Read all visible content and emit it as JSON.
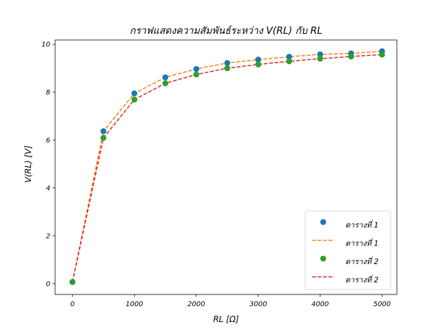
{
  "chart_data": {
    "type": "line",
    "title": "กราฟแสดงความสัมพันธ์ระหว่าง V(RL) กับ RL",
    "xlabel": "RL [Ω]",
    "ylabel": "V(RL) [V]",
    "xlim": [
      -280,
      5240
    ],
    "ylim": [
      -0.45,
      10.18
    ],
    "x_ticks": [
      0,
      1000,
      2000,
      3000,
      4000,
      5000
    ],
    "y_ticks": [
      0,
      2,
      4,
      6,
      8,
      10
    ],
    "grid": false,
    "legend_position": "lower-right",
    "x": [
      0,
      500,
      1000,
      1500,
      2000,
      2500,
      3000,
      3500,
      4000,
      4500,
      5000
    ],
    "series": [
      {
        "name": "ตารางที่ 1",
        "style": "markers",
        "color": "#1f77b4",
        "values": [
          0.07,
          6.37,
          7.95,
          8.62,
          8.97,
          9.22,
          9.36,
          9.48,
          9.58,
          9.62,
          9.71
        ]
      },
      {
        "name": "ตารางที่ 1",
        "style": "dashed",
        "color": "#ff7f0e",
        "values": [
          0.07,
          6.37,
          7.95,
          8.62,
          8.97,
          9.22,
          9.36,
          9.48,
          9.58,
          9.62,
          9.71
        ]
      },
      {
        "name": "ตารางที่ 2",
        "style": "markers",
        "color": "#2ca02c",
        "values": [
          0.07,
          6.09,
          7.69,
          8.37,
          8.74,
          9.0,
          9.16,
          9.29,
          9.4,
          9.49,
          9.57
        ]
      },
      {
        "name": "ตารางที่ 2",
        "style": "dashed",
        "color": "#d62728",
        "values": [
          0.07,
          6.09,
          7.69,
          8.37,
          8.74,
          9.0,
          9.16,
          9.29,
          9.4,
          9.49,
          9.57
        ]
      }
    ]
  }
}
